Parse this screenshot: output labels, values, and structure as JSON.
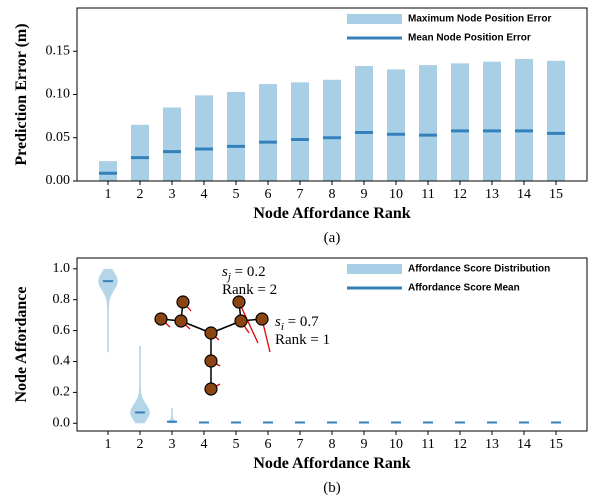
{
  "chart_data": [
    {
      "type": "bar",
      "categories": [
        "1",
        "2",
        "3",
        "4",
        "5",
        "6",
        "7",
        "8",
        "9",
        "10",
        "11",
        "12",
        "13",
        "14",
        "15"
      ],
      "series": [
        {
          "name": "Maximum Node Position Error",
          "color": "#a8cfe5",
          "marker": "bar",
          "values": [
            0.023,
            0.065,
            0.085,
            0.099,
            0.103,
            0.112,
            0.114,
            0.117,
            0.133,
            0.129,
            0.134,
            0.136,
            0.138,
            0.141,
            0.139
          ]
        },
        {
          "name": "Mean Node Position Error",
          "color": "#3580b8",
          "marker": "line",
          "values": [
            0.009,
            0.027,
            0.034,
            0.037,
            0.04,
            0.045,
            0.048,
            0.05,
            0.056,
            0.054,
            0.053,
            0.058,
            0.058,
            0.058,
            0.055
          ]
        }
      ],
      "ylabel": "Prediction Error  (m)",
      "xlabel": "Node Affordance Rank",
      "caption": "(a)",
      "ylim": [
        0,
        0.2
      ],
      "yticks": [
        {
          "value": 0,
          "label": "0.00"
        },
        {
          "value": 0.05,
          "label": "0.05"
        },
        {
          "value": 0.1,
          "label": "0.10"
        },
        {
          "value": 0.15,
          "label": "0.15"
        }
      ],
      "legend": "upper right"
    },
    {
      "type": "violin",
      "categories": [
        "1",
        "2",
        "3",
        "4",
        "5",
        "6",
        "7",
        "8",
        "9",
        "10",
        "11",
        "12",
        "13",
        "14",
        "15"
      ],
      "series": [
        {
          "name": "Affordance Score Distribution",
          "color": "#a8cfe5",
          "marker": "violin",
          "min": [
            0.46,
            0.0,
            0.0,
            0.0,
            0.0,
            0.0,
            0.0,
            0.0,
            0.0,
            0.0,
            0.0,
            0.0,
            0.0,
            0.0,
            0.0
          ],
          "max": [
            1.0,
            0.5,
            0.1,
            0.01,
            0.01,
            0.01,
            0.01,
            0.01,
            0.01,
            0.01,
            0.01,
            0.01,
            0.01,
            0.01,
            0.01
          ]
        },
        {
          "name": "Affordance Score Mean",
          "color": "#3580b8",
          "marker": "line",
          "values": [
            0.92,
            0.07,
            0.01,
            0.005,
            0.005,
            0.005,
            0.005,
            0.005,
            0.005,
            0.005,
            0.005,
            0.005,
            0.005,
            0.005,
            0.005
          ]
        }
      ],
      "ylabel": "Node Affordance",
      "xlabel": "Node Affordance Rank",
      "caption": "(b)",
      "ylim": [
        -0.05,
        1.07
      ],
      "yticks": [
        {
          "value": 0,
          "label": "0.0"
        },
        0.2,
        0.4,
        0.6,
        0.8,
        {
          "value": 1,
          "label": "1.0"
        }
      ],
      "legend": "upper right",
      "annotations": [
        {
          "symbol": "s",
          "sub": "j",
          "eq": " = 0.2",
          "rank": "Rank = 2"
        },
        {
          "symbol": "s",
          "sub": "i",
          "eq": " = 0.7",
          "rank": "Rank = 1"
        }
      ]
    }
  ]
}
